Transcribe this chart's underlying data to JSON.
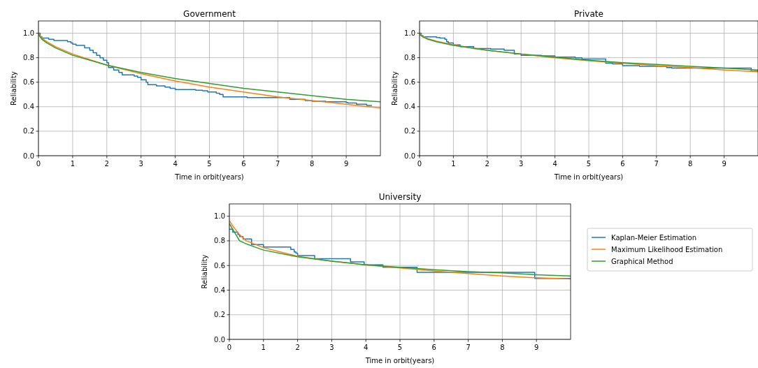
{
  "chart_data": [
    {
      "type": "line",
      "title": "Government",
      "xlabel": "Time in orbit(years)",
      "ylabel": "Reliability",
      "xlim": [
        0,
        10
      ],
      "ylim": [
        0,
        1.1
      ],
      "xticks": [
        0,
        1,
        2,
        3,
        4,
        5,
        6,
        7,
        8,
        9
      ],
      "yticks": [
        {
          "value": 0,
          "label": "0.0"
        },
        {
          "value": 0.2,
          "label": "0.2"
        },
        {
          "value": 0.4,
          "label": "0.4"
        },
        {
          "value": 0.6,
          "label": "0.6"
        },
        {
          "value": 0.8,
          "label": "0.8"
        },
        {
          "value": 1,
          "label": "1.0"
        }
      ],
      "grid": true,
      "legend": false,
      "series": [
        {
          "type": "step",
          "color": "#1f77b4",
          "x": [
            0,
            0.05,
            0.1,
            0.3,
            0.45,
            0.85,
            0.95,
            1.0,
            1.1,
            1.35,
            1.5,
            1.6,
            1.7,
            1.8,
            1.9,
            2.0,
            2.05,
            2.2,
            2.35,
            2.45,
            2.8,
            2.9,
            3.0,
            3.15,
            3.2,
            3.45,
            3.7,
            3.85,
            4.0,
            4.6,
            4.8,
            4.95,
            5.2,
            5.3,
            5.4,
            6.1,
            7.35,
            7.8,
            8.0,
            8.4,
            9.0,
            9.05,
            9.3,
            9.6,
            9.75
          ],
          "values": [
            1.0,
            0.97,
            0.96,
            0.95,
            0.94,
            0.93,
            0.92,
            0.91,
            0.9,
            0.88,
            0.86,
            0.84,
            0.82,
            0.8,
            0.78,
            0.76,
            0.72,
            0.7,
            0.68,
            0.66,
            0.65,
            0.64,
            0.62,
            0.6,
            0.58,
            0.57,
            0.56,
            0.55,
            0.54,
            0.535,
            0.53,
            0.52,
            0.51,
            0.5,
            0.48,
            0.475,
            0.46,
            0.45,
            0.445,
            0.44,
            0.435,
            0.43,
            0.42,
            0.41,
            0.41
          ]
        },
        {
          "type": "line",
          "color": "#ff7f0e",
          "x": [
            0,
            0.1,
            0.25,
            0.5,
            1,
            2,
            3,
            4,
            5,
            6,
            7,
            8,
            9,
            10
          ],
          "values": [
            1.0,
            0.96,
            0.93,
            0.89,
            0.83,
            0.74,
            0.67,
            0.61,
            0.56,
            0.52,
            0.48,
            0.45,
            0.42,
            0.39
          ]
        },
        {
          "type": "line",
          "color": "#2ca02c",
          "x": [
            0,
            0.1,
            0.25,
            0.5,
            1,
            2,
            3,
            4,
            5,
            6,
            7,
            8,
            9,
            10
          ],
          "values": [
            0.99,
            0.95,
            0.92,
            0.88,
            0.82,
            0.74,
            0.68,
            0.63,
            0.59,
            0.55,
            0.52,
            0.49,
            0.46,
            0.44
          ]
        }
      ]
    },
    {
      "type": "line",
      "title": "Private",
      "xlabel": "Time in orbit(years)",
      "ylabel": "Reliability",
      "xlim": [
        0,
        10
      ],
      "ylim": [
        0,
        1.1
      ],
      "xticks": [
        0,
        1,
        2,
        3,
        4,
        5,
        6,
        7,
        8,
        9
      ],
      "yticks": [
        {
          "value": 0,
          "label": "0.0"
        },
        {
          "value": 0.2,
          "label": "0.2"
        },
        {
          "value": 0.4,
          "label": "0.4"
        },
        {
          "value": 0.6,
          "label": "0.6"
        },
        {
          "value": 0.8,
          "label": "0.8"
        },
        {
          "value": 1,
          "label": "1.0"
        }
      ],
      "grid": true,
      "legend": false,
      "series": [
        {
          "type": "step",
          "color": "#1f77b4",
          "x": [
            0,
            0.05,
            0.1,
            0.5,
            0.6,
            0.75,
            0.8,
            0.85,
            1.0,
            1.2,
            1.6,
            2.1,
            2.5,
            2.8,
            3.0,
            3.6,
            4.0,
            4.6,
            4.8,
            5.5,
            5.7,
            6.0,
            6.5,
            7.3,
            7.45,
            8.0,
            9.8,
            10
          ],
          "values": [
            1.0,
            0.98,
            0.97,
            0.965,
            0.96,
            0.95,
            0.93,
            0.92,
            0.905,
            0.89,
            0.875,
            0.87,
            0.86,
            0.83,
            0.82,
            0.815,
            0.805,
            0.8,
            0.79,
            0.755,
            0.75,
            0.735,
            0.73,
            0.72,
            0.715,
            0.715,
            0.69,
            0.69
          ]
        },
        {
          "type": "line",
          "color": "#ff7f0e",
          "x": [
            0,
            0.1,
            0.25,
            0.5,
            1,
            2,
            3,
            4,
            5,
            6,
            7,
            8,
            9,
            10
          ],
          "values": [
            1.0,
            0.975,
            0.955,
            0.935,
            0.905,
            0.86,
            0.83,
            0.8,
            0.775,
            0.755,
            0.735,
            0.72,
            0.7,
            0.685
          ]
        },
        {
          "type": "line",
          "color": "#2ca02c",
          "x": [
            0,
            0.1,
            0.25,
            0.5,
            1,
            2,
            3,
            4,
            5,
            6,
            7,
            8,
            9,
            10
          ],
          "values": [
            0.99,
            0.97,
            0.95,
            0.93,
            0.9,
            0.86,
            0.83,
            0.805,
            0.78,
            0.76,
            0.745,
            0.73,
            0.715,
            0.7
          ]
        }
      ]
    },
    {
      "type": "line",
      "title": "University",
      "xlabel": "Time in orbit(years)",
      "ylabel": "Reliability",
      "xlim": [
        0,
        10
      ],
      "ylim": [
        0,
        1.1
      ],
      "xticks": [
        0,
        1,
        2,
        3,
        4,
        5,
        6,
        7,
        8,
        9
      ],
      "yticks": [
        {
          "value": 0,
          "label": "0.0"
        },
        {
          "value": 0.2,
          "label": "0.2"
        },
        {
          "value": 0.4,
          "label": "0.4"
        },
        {
          "value": 0.6,
          "label": "0.6"
        },
        {
          "value": 0.8,
          "label": "0.8"
        },
        {
          "value": 1,
          "label": "1.0"
        }
      ],
      "grid": true,
      "legend": "right",
      "series": [
        {
          "type": "step",
          "name": "Kaplan-Meier Estimation",
          "color": "#1f77b4",
          "x": [
            0,
            0.1,
            0.25,
            0.3,
            0.4,
            0.65,
            1.0,
            1.8,
            1.9,
            1.95,
            2.0,
            2.5,
            3.55,
            3.95,
            4.5,
            5.5,
            8.95,
            10
          ],
          "values": [
            0.895,
            0.87,
            0.85,
            0.835,
            0.815,
            0.77,
            0.75,
            0.73,
            0.71,
            0.7,
            0.68,
            0.655,
            0.63,
            0.605,
            0.585,
            0.545,
            0.495,
            0.495
          ]
        },
        {
          "type": "line",
          "name": "Maximum Likelihood Estimation",
          "color": "#ff7f0e",
          "x": [
            0,
            0.1,
            0.3,
            0.5,
            1,
            2,
            3,
            4,
            5,
            6,
            7,
            8,
            9,
            10
          ],
          "values": [
            0.965,
            0.92,
            0.85,
            0.8,
            0.745,
            0.675,
            0.635,
            0.605,
            0.58,
            0.555,
            0.535,
            0.515,
            0.5,
            0.49
          ]
        },
        {
          "type": "line",
          "name": "Graphical Method",
          "color": "#2ca02c",
          "x": [
            0,
            0.3,
            0.5,
            0.7,
            1,
            2,
            3,
            4,
            5,
            6,
            7,
            8,
            9,
            10
          ],
          "values": [
            0.94,
            0.8,
            0.775,
            0.755,
            0.725,
            0.67,
            0.635,
            0.605,
            0.585,
            0.565,
            0.55,
            0.54,
            0.525,
            0.515
          ]
        }
      ]
    }
  ]
}
